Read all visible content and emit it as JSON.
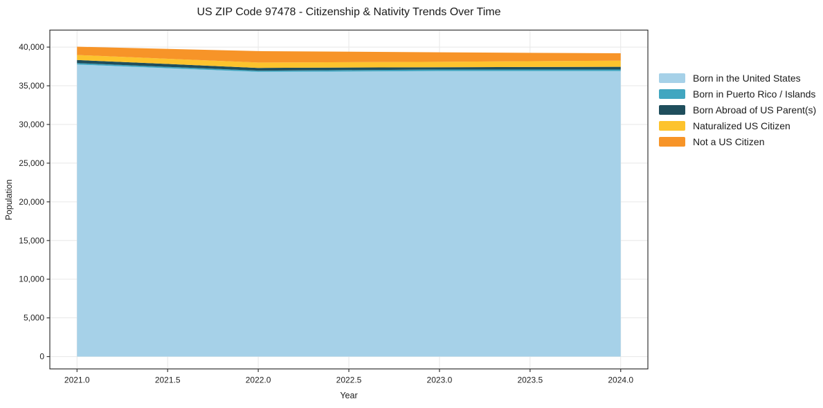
{
  "chart_data": {
    "type": "area",
    "stacked": true,
    "title": "US ZIP Code 97478 - Citizenship & Nativity Trends Over Time",
    "xlabel": "Year",
    "ylabel": "Population",
    "x": [
      2021,
      2022,
      2023,
      2024
    ],
    "series": [
      {
        "name": "Born in the United States",
        "color": "#a6d1e8",
        "values": [
          37750,
          36800,
          36900,
          36900
        ]
      },
      {
        "name": "Born in Puerto Rico / Islands",
        "color": "#41a6c0",
        "values": [
          180,
          160,
          200,
          200
        ]
      },
      {
        "name": "Born Abroad of US Parent(s)",
        "color": "#1f4e5c",
        "values": [
          400,
          350,
          300,
          350
        ]
      },
      {
        "name": "Naturalized US Citizen",
        "color": "#fdc32d",
        "values": [
          650,
          700,
          700,
          800
        ]
      },
      {
        "name": "Not a US Citizen",
        "color": "#f79428",
        "values": [
          1070,
          1470,
          1230,
          950
        ]
      }
    ],
    "totals": [
      40050,
      39480,
      39330,
      39200
    ],
    "xlim": [
      2020.85,
      2024.15
    ],
    "ylim": [
      -1600,
      42200
    ],
    "x_ticks": {
      "values": [
        2021.0,
        2021.5,
        2022.0,
        2022.5,
        2023.0,
        2023.5,
        2024.0
      ],
      "labels": [
        "2021.0",
        "2021.5",
        "2022.0",
        "2022.5",
        "2023.0",
        "2023.5",
        "2024.0"
      ]
    },
    "y_ticks": {
      "values": [
        0,
        5000,
        10000,
        15000,
        20000,
        25000,
        30000,
        35000,
        40000
      ],
      "labels": [
        "0",
        "5,000",
        "10,000",
        "15,000",
        "20,000",
        "25,000",
        "30,000",
        "35,000",
        "40,000"
      ]
    },
    "grid": true,
    "legend_position": "right-outside",
    "colors": {
      "grid": "#e7e7e7",
      "spine": "#333333",
      "tick_text": "#1f1f1f",
      "background": "#ffffff"
    }
  }
}
